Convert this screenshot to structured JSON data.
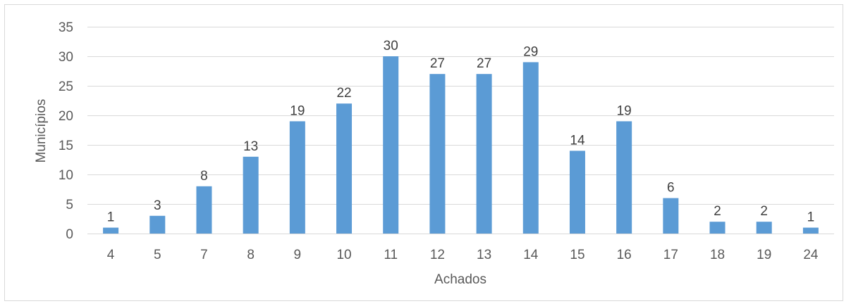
{
  "chart_data": {
    "type": "bar",
    "title": "",
    "xlabel": "Achados",
    "ylabel": "Municípios",
    "categories": [
      "4",
      "5",
      "7",
      "8",
      "9",
      "10",
      "11",
      "12",
      "13",
      "14",
      "15",
      "16",
      "17",
      "18",
      "19",
      "24"
    ],
    "values": [
      1,
      3,
      8,
      13,
      19,
      22,
      30,
      27,
      27,
      29,
      14,
      19,
      6,
      2,
      2,
      1
    ],
    "yticks": [
      0,
      5,
      10,
      15,
      20,
      25,
      30,
      35
    ],
    "ylim": [
      0,
      35
    ],
    "grid": true,
    "data_labels": true,
    "bar_color": "#5b9bd5",
    "grid_color": "#d9d9d9"
  }
}
